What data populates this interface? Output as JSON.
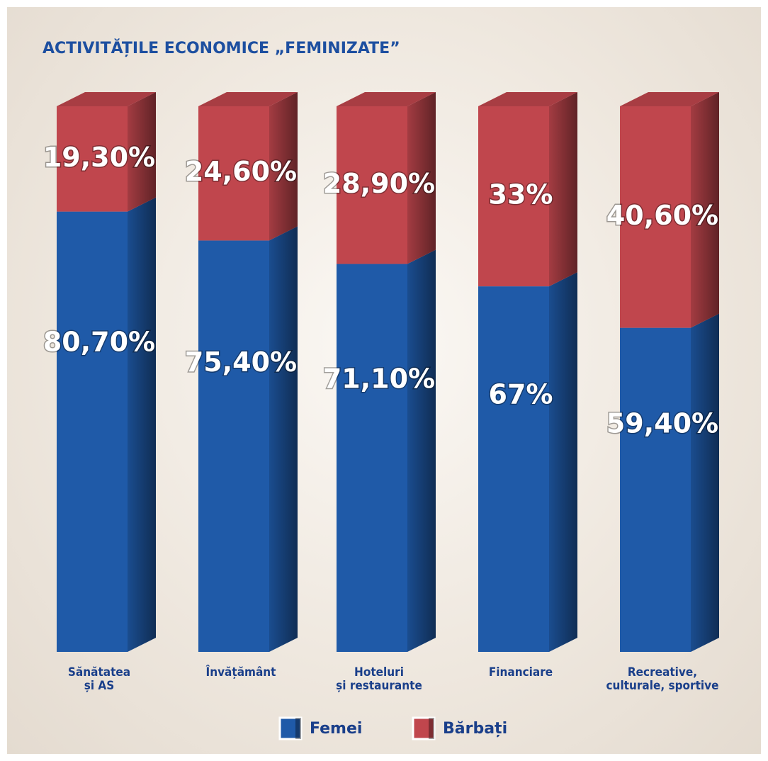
{
  "chart_data": {
    "type": "stacked_bar_3d",
    "title": "ACTIVITĂȚILE ECONOMICE „FEMINIZATE”",
    "categories": [
      "Sănătatea\nși AS",
      "Învățământ",
      "Hoteluri\nși restaurante",
      "Financiare",
      "Recreative,\nculturale, sportive"
    ],
    "series": [
      {
        "name": "Femei",
        "color": "#1f5aa8",
        "values": [
          80.7,
          75.4,
          71.1,
          67,
          59.4
        ],
        "value_labels": [
          "80,70%",
          "75,40%",
          "71,10%",
          "67%",
          "59,40%"
        ]
      },
      {
        "name": "Bărbați",
        "color": "#c0464d",
        "values": [
          19.3,
          24.6,
          28.9,
          33,
          40.6
        ],
        "value_labels": [
          "19,30%",
          "24,60%",
          "28,90%",
          "33%",
          "40,60%"
        ]
      }
    ]
  }
}
